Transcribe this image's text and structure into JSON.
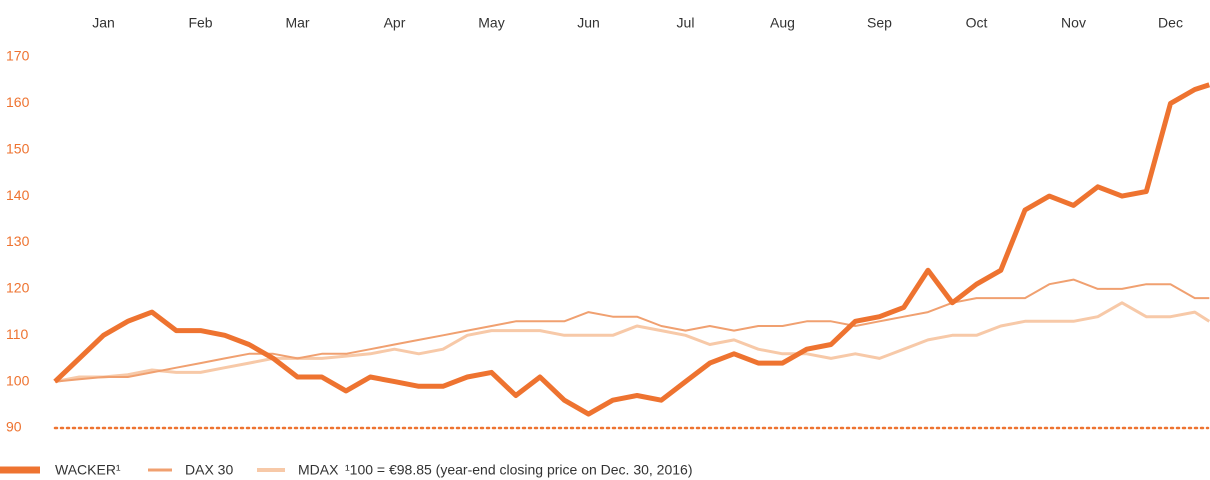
{
  "chart_data": {
    "type": "line",
    "x": [
      0,
      0.25,
      0.5,
      0.75,
      1,
      1.25,
      1.5,
      1.75,
      2,
      2.25,
      2.5,
      2.75,
      3,
      3.25,
      3.5,
      3.75,
      4,
      4.25,
      4.5,
      4.75,
      5,
      5.25,
      5.5,
      5.75,
      6,
      6.25,
      6.5,
      6.75,
      7,
      7.25,
      7.5,
      7.75,
      8,
      8.25,
      8.5,
      8.75,
      9,
      9.25,
      9.5,
      9.75,
      10,
      10.25,
      10.5,
      10.75,
      11,
      11.25,
      11.5,
      11.75,
      11.9
    ],
    "xlim": [
      0,
      12
    ],
    "xticks": [
      {
        "value": 0.5,
        "label": "Jan"
      },
      {
        "value": 1.5,
        "label": "Feb"
      },
      {
        "value": 2.5,
        "label": "Mar"
      },
      {
        "value": 3.5,
        "label": "Apr"
      },
      {
        "value": 4.5,
        "label": "May"
      },
      {
        "value": 5.5,
        "label": "Jun"
      },
      {
        "value": 6.5,
        "label": "Jul"
      },
      {
        "value": 7.5,
        "label": "Aug"
      },
      {
        "value": 8.5,
        "label": "Sep"
      },
      {
        "value": 9.5,
        "label": "Oct"
      },
      {
        "value": 10.5,
        "label": "Nov"
      },
      {
        "value": 11.5,
        "label": "Dec"
      }
    ],
    "ylim": [
      90,
      170
    ],
    "yticks": [
      90,
      100,
      110,
      120,
      130,
      140,
      150,
      160,
      170
    ],
    "grid": false,
    "legend": "bottom",
    "note": "¹100 = €98.85 (year-end closing price on Dec. 30, 2016)",
    "series": [
      {
        "name": "WACKER¹",
        "color": "#ee7330",
        "values": [
          100,
          105,
          110,
          113,
          115,
          111,
          111,
          110,
          108,
          105,
          101,
          101,
          98,
          101,
          100,
          99,
          99,
          101,
          102,
          97,
          101,
          96,
          93,
          96,
          97,
          96,
          100,
          104,
          106,
          104,
          104,
          107,
          108,
          113,
          114,
          116,
          124,
          117,
          121,
          124,
          137,
          140,
          138,
          142,
          140,
          141,
          160,
          163,
          164
        ]
      },
      {
        "name": "DAX 30",
        "color": "#f0a070",
        "values": [
          100,
          100.5,
          101,
          101,
          102,
          103,
          104,
          105,
          106,
          106,
          105,
          106,
          106,
          107,
          108,
          109,
          110,
          111,
          112,
          113,
          113,
          113,
          115,
          114,
          114,
          112,
          111,
          112,
          111,
          112,
          112,
          113,
          113,
          112,
          113,
          114,
          115,
          117,
          118,
          118,
          118,
          121,
          122,
          120,
          120,
          121,
          121,
          118,
          118
        ]
      },
      {
        "name": "MDAX",
        "color": "#f7c9a8",
        "values": [
          100,
          101,
          101,
          101.5,
          102.5,
          102,
          102,
          103,
          104,
          105,
          105,
          105,
          105.5,
          106,
          107,
          106,
          107,
          110,
          111,
          111,
          111,
          110,
          110,
          110,
          112,
          111,
          110,
          108,
          109,
          107,
          106,
          106,
          105,
          106,
          105,
          107,
          109,
          110,
          110,
          112,
          113,
          113,
          113,
          114,
          117,
          114,
          114,
          115,
          113
        ]
      }
    ]
  }
}
